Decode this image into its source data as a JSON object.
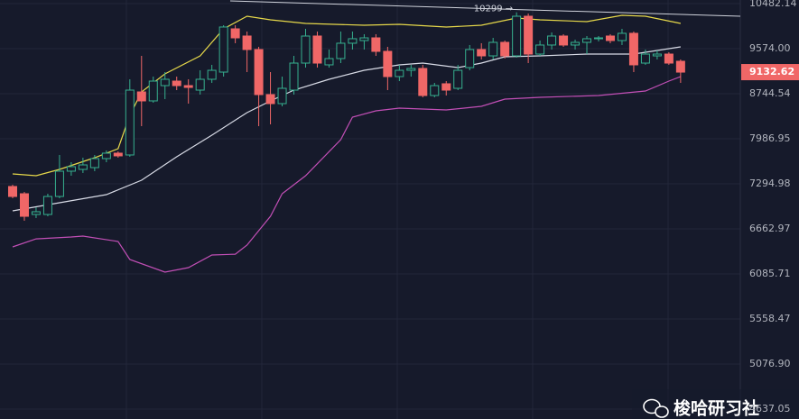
{
  "chart_data": {
    "type": "candlestick",
    "log_scale": true,
    "grid": true,
    "up_color": "#36b08f",
    "down_color": "#f06767",
    "categories": [
      null,
      null,
      null,
      null,
      null,
      null,
      null,
      null,
      null,
      null,
      null,
      null,
      null,
      null,
      null,
      null,
      null,
      null,
      null,
      null,
      null,
      null,
      null,
      null,
      null,
      null,
      null,
      null,
      null,
      null,
      null,
      null,
      null,
      null,
      null,
      null,
      null,
      null,
      null,
      null,
      null,
      null,
      null,
      null,
      null,
      null,
      null,
      null,
      null,
      null,
      null,
      null,
      null,
      null,
      null,
      null,
      null,
      null
    ],
    "open": [
      7256,
      7151,
      6859,
      6859,
      7112,
      7483,
      7510,
      7537,
      7675,
      7759,
      7731,
      8776,
      8619,
      8888,
      8969,
      8888,
      8808,
      9002,
      9133,
      9963,
      9820,
      9557,
      8729,
      8572,
      8808,
      9300,
      9820,
      9267,
      9385,
      9679,
      9731,
      9784,
      9522,
      9051,
      9166,
      9200,
      8713,
      8921,
      8840,
      9216,
      9557,
      9436,
      9696,
      9436,
      10219,
      9470,
      9644,
      9820,
      9644,
      9696,
      9767,
      9820,
      9731,
      9874,
      9300,
      9436,
      9470,
      9334
    ],
    "high": [
      7282,
      7177,
      6959,
      7151,
      7731,
      7619,
      7689,
      7731,
      7801,
      7787,
      9002,
      9436,
      9051,
      9133,
      9051,
      9002,
      9166,
      9267,
      10036,
      10036,
      9909,
      9609,
      9133,
      9051,
      9436,
      9963,
      9909,
      9557,
      9909,
      9909,
      9856,
      9856,
      9609,
      9267,
      9267,
      9267,
      8937,
      8969,
      9267,
      9644,
      9679,
      9784,
      9731,
      10299,
      10275,
      9731,
      9891,
      9856,
      9749,
      9820,
      9820,
      9856,
      9963,
      9909,
      9557,
      9539,
      9505,
      9368
    ],
    "low": [
      7087,
      6773,
      6810,
      6834,
      7087,
      7415,
      7456,
      7483,
      7619,
      7689,
      7703,
      8192,
      8588,
      8650,
      8808,
      8572,
      8729,
      8937,
      9051,
      9679,
      9133,
      8192,
      8222,
      8525,
      8729,
      9216,
      9216,
      9216,
      9300,
      9557,
      9557,
      9436,
      8808,
      8969,
      9051,
      8681,
      8681,
      8713,
      8808,
      9166,
      9368,
      9368,
      9385,
      9402,
      9300,
      9436,
      9557,
      9609,
      9557,
      9470,
      9714,
      9679,
      9644,
      9133,
      9267,
      9368,
      9267,
      8937
    ],
    "close": [
      7112,
      6834,
      6897,
      7112,
      7483,
      7551,
      7578,
      7675,
      7759,
      7717,
      8808,
      8619,
      8969,
      9002,
      8888,
      8856,
      9002,
      9166,
      10000,
      9784,
      9557,
      8729,
      8572,
      8840,
      9300,
      9820,
      9300,
      9385,
      9679,
      9767,
      9784,
      9522,
      9051,
      9166,
      9200,
      8713,
      8888,
      8808,
      9166,
      9557,
      9436,
      9696,
      9436,
      10219,
      9470,
      9644,
      9820,
      9644,
      9696,
      9767,
      9784,
      9731,
      9874,
      9267,
      9470,
      9470,
      9300,
      9132.62
    ],
    "bands": [
      {
        "color": "#e6d84a",
        "x": [
          0,
          2,
          4,
          7,
          9,
          10,
          11,
          13,
          16,
          18,
          20,
          22,
          25,
          30,
          33,
          37,
          40,
          43,
          45,
          49,
          52,
          54,
          57
        ],
        "values": [
          7442,
          7415,
          7510,
          7689,
          7829,
          8372,
          8776,
          9100,
          9436,
          9963,
          10219,
          10146,
          10072,
          10036,
          10054,
          10000,
          10036,
          10182,
          10146,
          10109,
          10238,
          10219,
          10072
        ]
      },
      {
        "color": "#d8dbe6",
        "x": [
          0,
          4,
          8,
          11,
          14,
          17,
          20,
          22,
          24,
          27,
          30,
          33,
          35,
          38,
          40,
          42,
          45,
          49,
          53,
          57
        ],
        "values": [
          6909,
          7023,
          7138,
          7348,
          7703,
          8045,
          8418,
          8619,
          8808,
          9002,
          9166,
          9267,
          9300,
          9216,
          9300,
          9419,
          9436,
          9470,
          9470,
          9609
        ]
      },
      {
        "color": "#c24fb6",
        "x": [
          0,
          2,
          5,
          6,
          9,
          10,
          13,
          15,
          17,
          19,
          20,
          22,
          23,
          25,
          28,
          29,
          31,
          33,
          37,
          40,
          42,
          45,
          50,
          54,
          56,
          57
        ],
        "values": [
          6426,
          6531,
          6555,
          6567,
          6496,
          6265,
          6108,
          6164,
          6322,
          6333,
          6449,
          6834,
          7151,
          7415,
          7973,
          8342,
          8449,
          8495,
          8464,
          8525,
          8650,
          8681,
          8713,
          8792,
          8969,
          9051
        ]
      }
    ],
    "ylim": [
      4546,
      10558
    ],
    "yticks": [
      {
        "value": 10482.14,
        "label": "10482.14"
      },
      {
        "value": 9574,
        "label": "9574.00"
      },
      {
        "value": 8744.54,
        "label": "8744.54"
      },
      {
        "value": 7986.95,
        "label": "7986.95"
      },
      {
        "value": 7294.98,
        "label": "7294.98"
      },
      {
        "value": 6662.97,
        "label": "6662.97"
      },
      {
        "value": 6085.71,
        "label": "6085.71"
      },
      {
        "value": 5558.47,
        "label": "5558.47"
      },
      {
        "value": 5076.9,
        "label": "5076.90"
      },
      {
        "value": 4637.05,
        "label": "4637.05"
      }
    ],
    "annotation": "10299 →",
    "watermark": "梭哈研习社"
  }
}
